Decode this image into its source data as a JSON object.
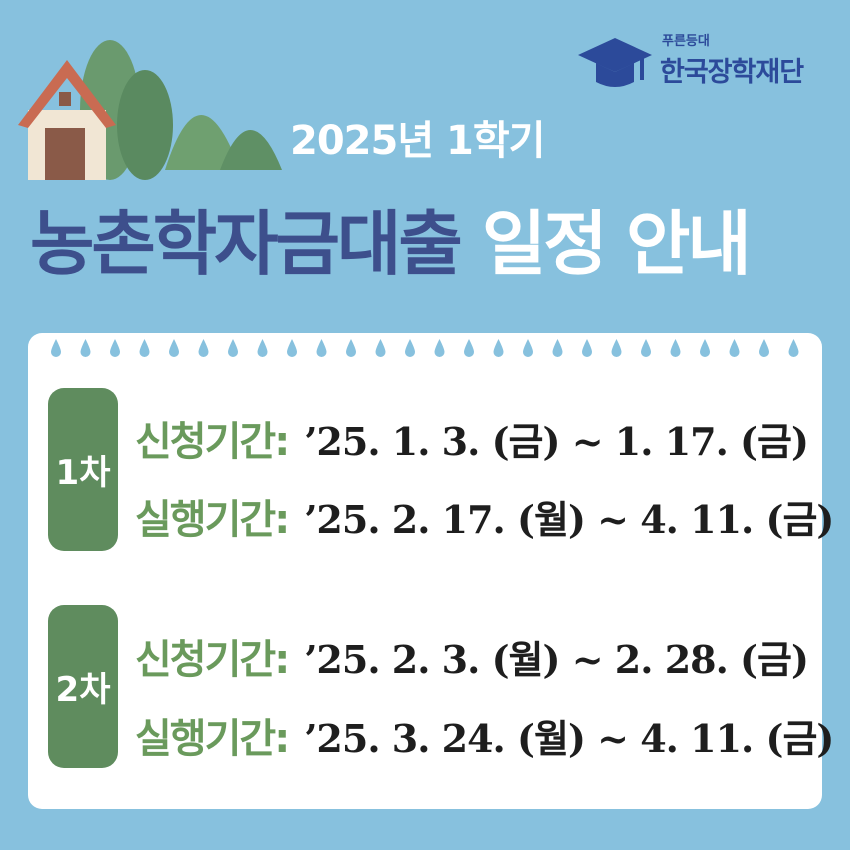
{
  "logo": {
    "tagline": "푸른등대",
    "name": "한국장학재단"
  },
  "header": {
    "subtitle": "2025년 1학기",
    "title_main": "농촌학자금대출",
    "title_accent": "일정 안내"
  },
  "rounds": [
    {
      "label": "1차",
      "rows": [
        {
          "label": "신청기간:",
          "dates": "’25. 1. 3. (금) ~ 1. 17. (금)"
        },
        {
          "label": "실행기간:",
          "dates": "’25. 2. 17. (월) ~ 4. 11. (금)"
        }
      ]
    },
    {
      "label": "2차",
      "rows": [
        {
          "label": "신청기간:",
          "dates": "’25. 2. 3. (월) ~ 2. 28. (금)"
        },
        {
          "label": "실행기간:",
          "dates": "’25. 3. 24. (월) ~ 4. 11. (금)"
        }
      ]
    }
  ]
}
